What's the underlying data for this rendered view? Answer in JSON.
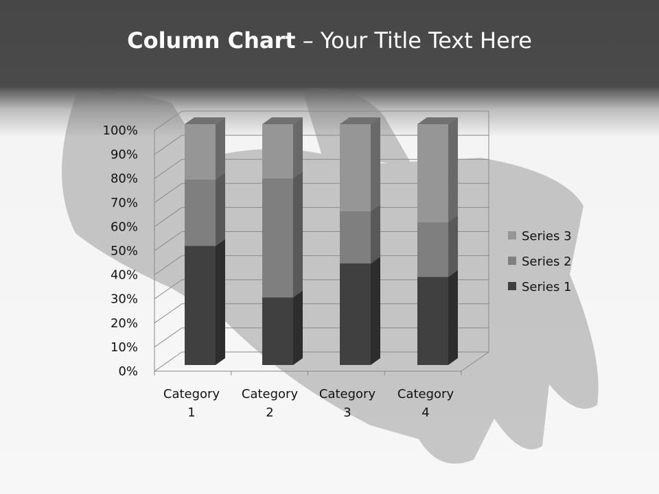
{
  "slide": {
    "title_bold": "Column Chart",
    "title_rest": " – Your Title Text Here"
  },
  "chart_data": {
    "type": "bar",
    "subtype": "3d-100%-stacked-column",
    "categories": [
      "Category 1",
      "Category 2",
      "Category 3",
      "Category 4"
    ],
    "series": [
      {
        "name": "Series 1",
        "values": [
          4.3,
          2.5,
          3.5,
          4.5
        ],
        "color": "#404040"
      },
      {
        "name": "Series 2",
        "values": [
          2.4,
          4.4,
          1.8,
          2.8
        ],
        "color": "#7f7f7f"
      },
      {
        "name": "Series 3",
        "values": [
          2,
          2,
          3,
          5
        ],
        "color": "#969696"
      }
    ],
    "y_ticks": [
      "0%",
      "10%",
      "20%",
      "30%",
      "40%",
      "50%",
      "60%",
      "70%",
      "80%",
      "90%",
      "100%"
    ],
    "ylim": [
      0,
      100
    ],
    "grid": true,
    "legend": "right"
  }
}
